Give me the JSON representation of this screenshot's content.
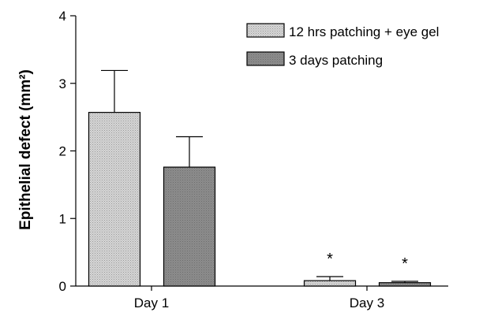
{
  "chart_data": {
    "type": "bar",
    "categories": [
      "Day 1",
      "Day 3"
    ],
    "series": [
      {
        "name": "12 hrs patching + eye gel",
        "values": [
          2.57,
          0.08
        ],
        "error": [
          0.62,
          0.06
        ],
        "color": "#c8c8c8",
        "pattern": "dotted"
      },
      {
        "name": "3 days patching",
        "values": [
          1.76,
          0.05
        ],
        "error": [
          0.45,
          0.02
        ],
        "color": "#888888",
        "pattern": "dense"
      }
    ],
    "significance": [
      "",
      "*"
    ],
    "title": "",
    "xlabel": "",
    "ylabel": "Epithelial defect (mm²)",
    "ylim": [
      0,
      4
    ],
    "yticks": [
      0,
      1,
      2,
      3,
      4
    ],
    "grid": false,
    "legend_position": "top-right"
  }
}
